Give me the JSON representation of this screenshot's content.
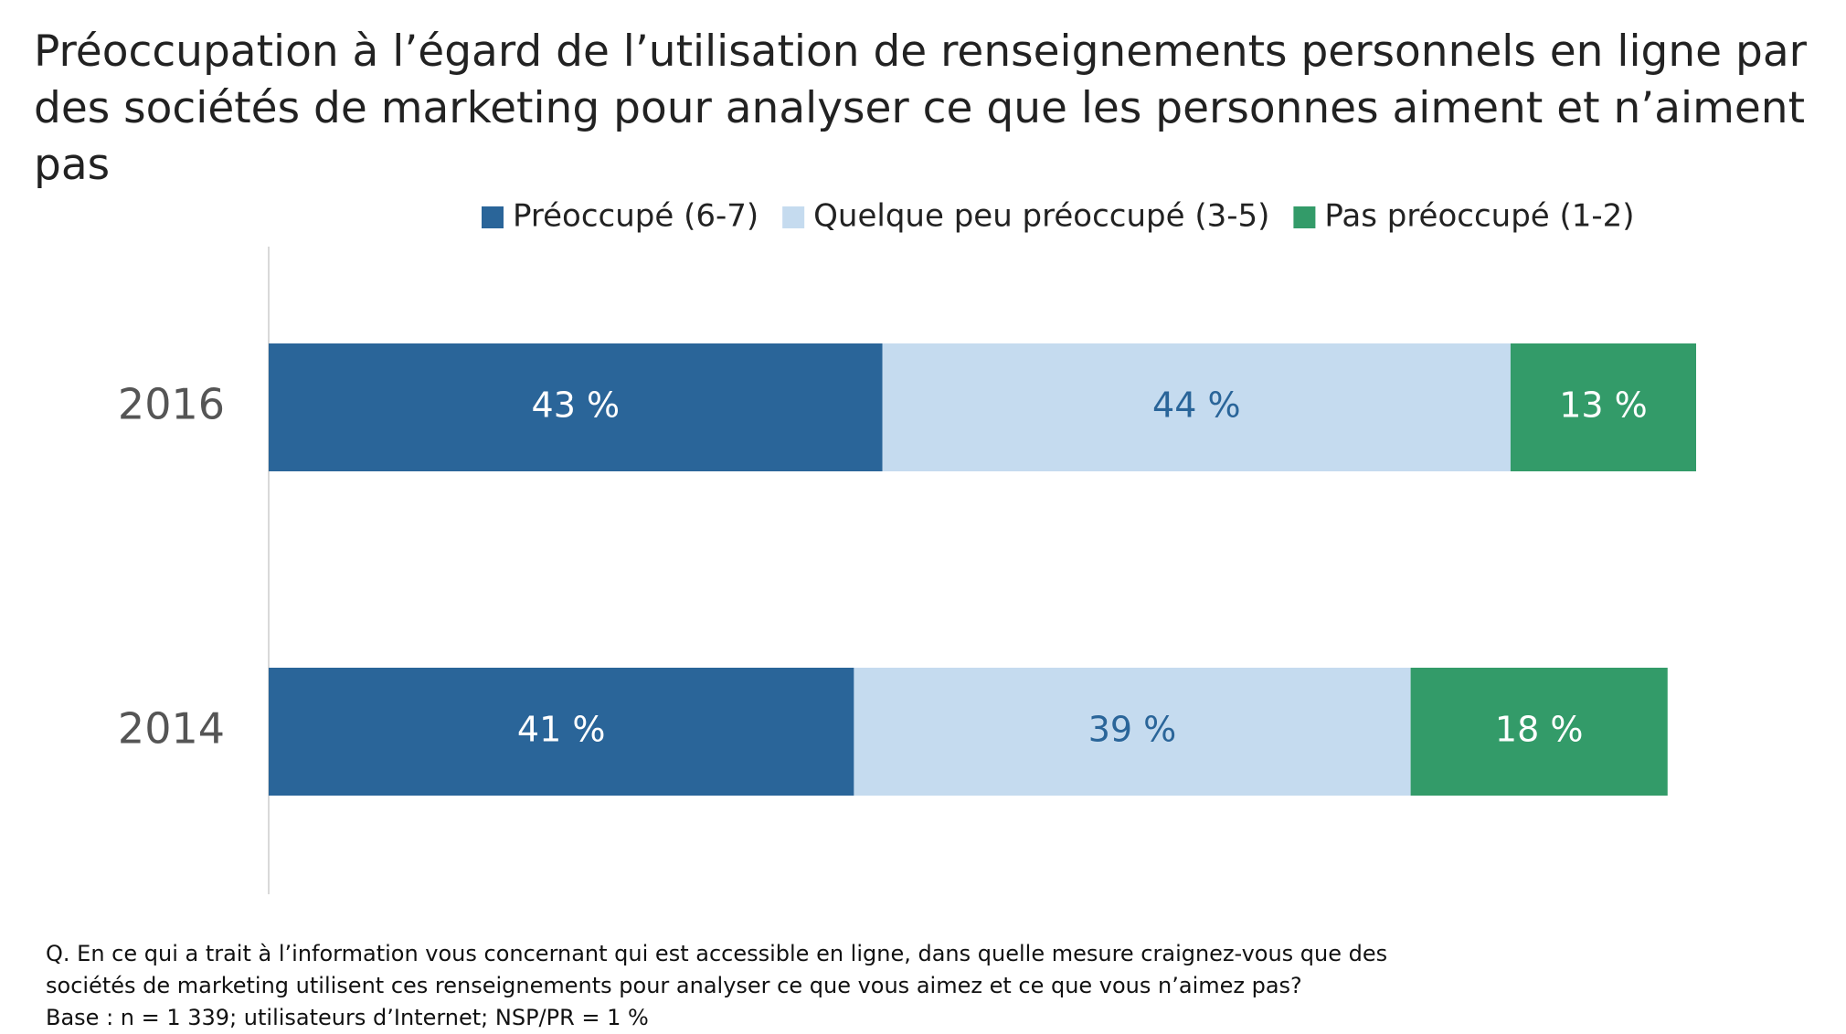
{
  "chart_data": {
    "type": "stacked-bar-horizontal",
    "title": "Préoccupation à l’égard de l’utilisation de renseignements personnels en ligne par des sociétés de marketing pour analyser ce que les personnes aiment et n’aiment pas",
    "categories": [
      "2016",
      "2014"
    ],
    "series": [
      {
        "name": "Préoccupé (6-7)",
        "color": "#2a6599",
        "values": [
          43,
          41
        ],
        "value_labels": [
          "43 %",
          "41 %"
        ]
      },
      {
        "name": "Quelque peu préoccupé (3-5)",
        "color": "#c5dbef",
        "values": [
          44,
          39
        ],
        "value_labels": [
          "44 %",
          "39 %"
        ]
      },
      {
        "name": "Pas préoccupé (1-2)",
        "color": "#339b69",
        "values": [
          13,
          18
        ],
        "value_labels": [
          "13 %",
          "18 %"
        ]
      }
    ],
    "xlim": [
      0,
      100
    ],
    "notes": [
      "Q. En ce qui a trait à l’information vous concernant qui est accessible en ligne, dans quelle mesure craignez-vous que des",
      "sociétés de marketing utilisent ces renseignements pour analyser ce que vous aimez et ce que vous n’aimez pas?",
      "Base : n = 1 339; utilisateurs d’Internet; NSP/PR = 1 %"
    ]
  }
}
